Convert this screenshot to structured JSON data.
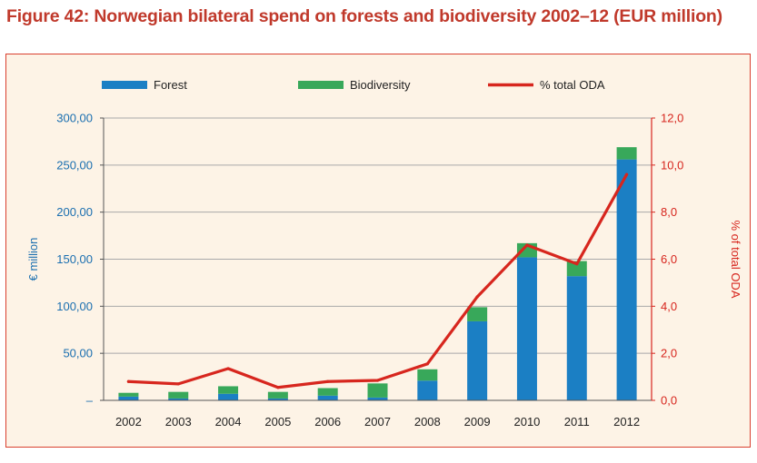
{
  "title": "Figure 42: Norwegian bilateral spend on forests and biodiversity 2002–12 (EUR million)",
  "colors": {
    "forest": "#1b7fc4",
    "biodiversity": "#38a85a",
    "oda": "#d7261e",
    "left_axis": "#1b6fb0",
    "right_axis": "#d7261e",
    "grid": "#a9a9a9",
    "background": "#fdf3e6",
    "title": "#c0392b"
  },
  "chart_data": {
    "type": "bar",
    "stacked": true,
    "title": "Norwegian bilateral spend on forests and biodiversity 2002–12 (EUR million)",
    "categories": [
      "2002",
      "2003",
      "2004",
      "2005",
      "2006",
      "2007",
      "2008",
      "2009",
      "2010",
      "2011",
      "2012"
    ],
    "series": [
      {
        "name": "Forest",
        "type": "bar",
        "axis": "left",
        "values": [
          4,
          2,
          7,
          2,
          5,
          3,
          21,
          84,
          152,
          132,
          256
        ]
      },
      {
        "name": "Biodiversity",
        "type": "bar",
        "axis": "left",
        "values": [
          4,
          7,
          8,
          7,
          8,
          15,
          12,
          15,
          15,
          16,
          13
        ]
      },
      {
        "name": "% total ODA",
        "type": "line",
        "axis": "right",
        "values": [
          0.8,
          0.7,
          1.35,
          0.55,
          0.8,
          0.85,
          1.55,
          4.4,
          6.6,
          5.8,
          9.6
        ]
      }
    ],
    "ylabel": "€ million",
    "y2label": "% of total ODA",
    "ylim": [
      0,
      300
    ],
    "y2lim": [
      0,
      12
    ],
    "yticks": [
      "–",
      "50,00",
      "100,00",
      "150,00",
      "200,00",
      "250,00",
      "300,00"
    ],
    "y2ticks": [
      "0,0",
      "2,0",
      "4,0",
      "6,0",
      "8,0",
      "10,0",
      "12,0"
    ],
    "grid": true,
    "legend": "top"
  }
}
